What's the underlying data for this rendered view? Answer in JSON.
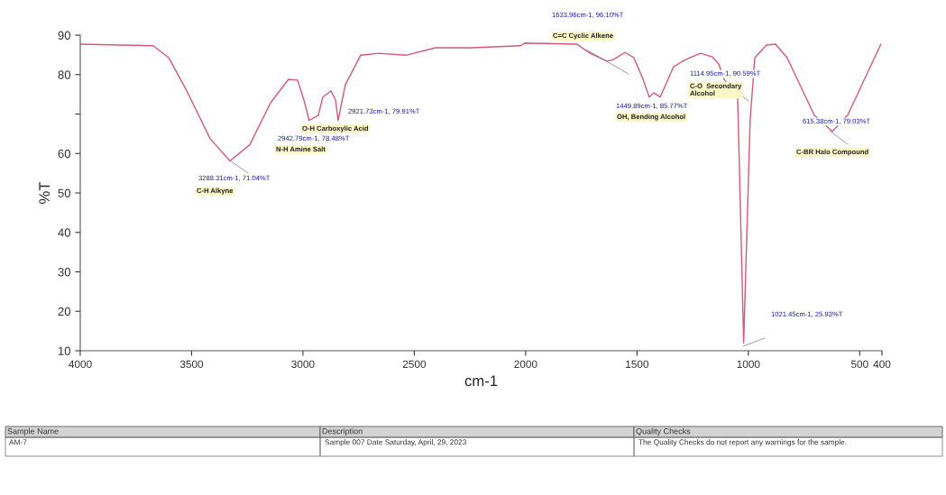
{
  "chart_data": {
    "type": "line",
    "xlabel": "cm-1",
    "ylabel": "%T",
    "x": [
      4000,
      3672,
      3603,
      3522,
      3417,
      3328,
      3239,
      3146,
      3065,
      3024,
      2996,
      2972,
      2931,
      2911,
      2874,
      2854,
      2842,
      2810,
      2741,
      2660,
      2538,
      2405,
      2243,
      2024,
      2004,
      1769,
      1716,
      1635,
      1607,
      1554,
      1514,
      1473,
      1445,
      1425,
      1396,
      1336,
      1283,
      1214,
      1162,
      1133,
      1109,
      1048,
      1021,
      992,
      971,
      919,
      878,
      826,
      704,
      623,
      554,
      405
    ],
    "series": [
      {
        "color": "#d05a78",
        "values": [
          87.7,
          87.3,
          84.3,
          75.9,
          63.8,
          58.1,
          62.2,
          72.8,
          78.8,
          78.6,
          73.6,
          68.4,
          69.7,
          74.3,
          75.9,
          73.6,
          68.4,
          77.4,
          84.9,
          85.4,
          84.9,
          86.8,
          86.8,
          87.3,
          88.0,
          87.7,
          85.6,
          83.4,
          83.8,
          85.6,
          84.3,
          78.8,
          74.3,
          75.4,
          74.3,
          82.0,
          83.8,
          85.4,
          84.5,
          82.7,
          78.8,
          74.3,
          12.0,
          68.4,
          84.3,
          87.5,
          87.7,
          84.3,
          69.7,
          65.6,
          69.7,
          87.7
        ]
      }
    ],
    "xlim": [
      4000,
      400
    ],
    "xticks": [
      4000,
      3500,
      3000,
      2500,
      2000,
      1500,
      1000,
      500,
      400
    ],
    "ylim": [
      10,
      90
    ],
    "yticks": [
      10,
      20,
      30,
      40,
      50,
      60,
      {
        "value": 70,
        "label": null
      },
      80,
      90
    ],
    "grid": false,
    "marker": "none",
    "line_style": "solid",
    "annotations": [
      "3288.31cm-1, 71.04%T",
      "2942.79cm-1, 78.48%T",
      "2921.73cm-1, 79.91%T",
      "1633.96cm-1, 96.10%T",
      "1449.89cm-1, 85.77%T",
      "1114.95cm-1, 90.59%T",
      "1021.45cm-1, 25.93%T",
      "615.38cm-1, 79.03%T",
      "C-H Alkyne",
      "N-H Amine Salt",
      "O-H Carboxylic Acid",
      "C=C Cyclic Alkene",
      "OH, Bending Alcohol",
      "C-O  Secondary\nAlcohol",
      "C-BR Halo Compound",
      "Sample Name",
      "Description",
      "Quality Checks",
      "AM-7",
      "Sample 007 Date Saturday, April, 29, 2023",
      "The Quality Checks do not report any warnings for the sample."
    ]
  }
}
